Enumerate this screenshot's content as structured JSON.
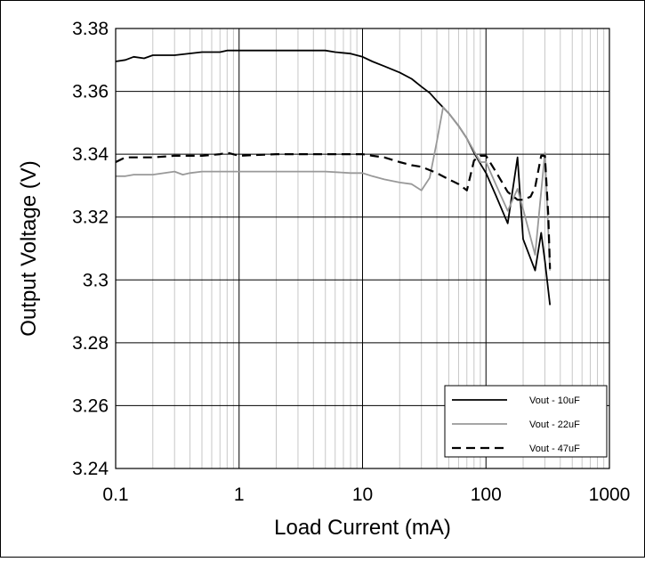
{
  "chart_data": {
    "type": "line",
    "title": "",
    "xlabel": "Load Current (mA)",
    "ylabel": "Output Voltage (V)",
    "xscale": "log",
    "xlim": [
      0.1,
      1000
    ],
    "ylim": [
      3.24,
      3.38
    ],
    "x_ticks": [
      "0.1",
      "1",
      "10",
      "100",
      "1000"
    ],
    "y_ticks": [
      "3.24",
      "3.26",
      "3.28",
      "3.3",
      "3.32",
      "3.34",
      "3.36",
      "3.38"
    ],
    "grid": "major and minor vertical, major horizontal",
    "legend_position": "bottom-right",
    "series": [
      {
        "name": "Vout - 10uF",
        "color": "#000000",
        "dash": "solid",
        "x": [
          0.1,
          0.12,
          0.14,
          0.17,
          0.2,
          0.3,
          0.5,
          0.7,
          0.8,
          1,
          2,
          3,
          5,
          6,
          8,
          10,
          12,
          15,
          20,
          25,
          30,
          35,
          40,
          50,
          60,
          70,
          80,
          90,
          100,
          120,
          150,
          180,
          200,
          250,
          280,
          300,
          330
        ],
        "y": [
          3.3695,
          3.37,
          3.371,
          3.3705,
          3.3715,
          3.3715,
          3.3725,
          3.3725,
          3.373,
          3.373,
          3.373,
          3.373,
          3.373,
          3.3725,
          3.372,
          3.371,
          3.3695,
          3.368,
          3.366,
          3.364,
          3.3615,
          3.3595,
          3.357,
          3.353,
          3.349,
          3.345,
          3.3405,
          3.337,
          3.334,
          3.327,
          3.318,
          3.339,
          3.313,
          3.303,
          3.315,
          3.306,
          3.292
        ]
      },
      {
        "name": "Vout - 22uF",
        "color": "#999999",
        "dash": "solid",
        "x": [
          0.1,
          0.12,
          0.14,
          0.2,
          0.3,
          0.35,
          0.4,
          0.5,
          1,
          2,
          5,
          8,
          10,
          12,
          15,
          20,
          25,
          30,
          35,
          40,
          45,
          50,
          60,
          70,
          80,
          90,
          100,
          120,
          150,
          180,
          200,
          250,
          300,
          330
        ],
        "y": [
          3.333,
          3.333,
          3.3335,
          3.3335,
          3.3345,
          3.3335,
          3.334,
          3.3345,
          3.3345,
          3.3345,
          3.3345,
          3.334,
          3.334,
          3.333,
          3.332,
          3.331,
          3.3305,
          3.3285,
          3.3325,
          3.344,
          3.355,
          3.353,
          3.349,
          3.345,
          3.341,
          3.3375,
          3.3375,
          3.3305,
          3.322,
          3.329,
          3.3225,
          3.308,
          3.3405,
          3.303
        ]
      },
      {
        "name": "Vout - 47uF",
        "color": "#000000",
        "dash": "dashed",
        "x": [
          0.1,
          0.12,
          0.15,
          0.2,
          0.3,
          0.5,
          0.7,
          0.8,
          1,
          2,
          5,
          10,
          12,
          15,
          20,
          25,
          30,
          40,
          50,
          60,
          70,
          80,
          90,
          100,
          120,
          150,
          180,
          200,
          230,
          250,
          280,
          300,
          320,
          330
        ],
        "y": [
          3.3375,
          3.339,
          3.339,
          3.339,
          3.3395,
          3.3395,
          3.34,
          3.3405,
          3.3395,
          3.34,
          3.34,
          3.34,
          3.3395,
          3.339,
          3.3375,
          3.3365,
          3.336,
          3.334,
          3.332,
          3.3305,
          3.3285,
          3.338,
          3.3395,
          3.3395,
          3.3345,
          3.328,
          3.3255,
          3.3255,
          3.3265,
          3.3295,
          3.3395,
          3.3395,
          3.3205,
          3.3035
        ]
      }
    ]
  }
}
